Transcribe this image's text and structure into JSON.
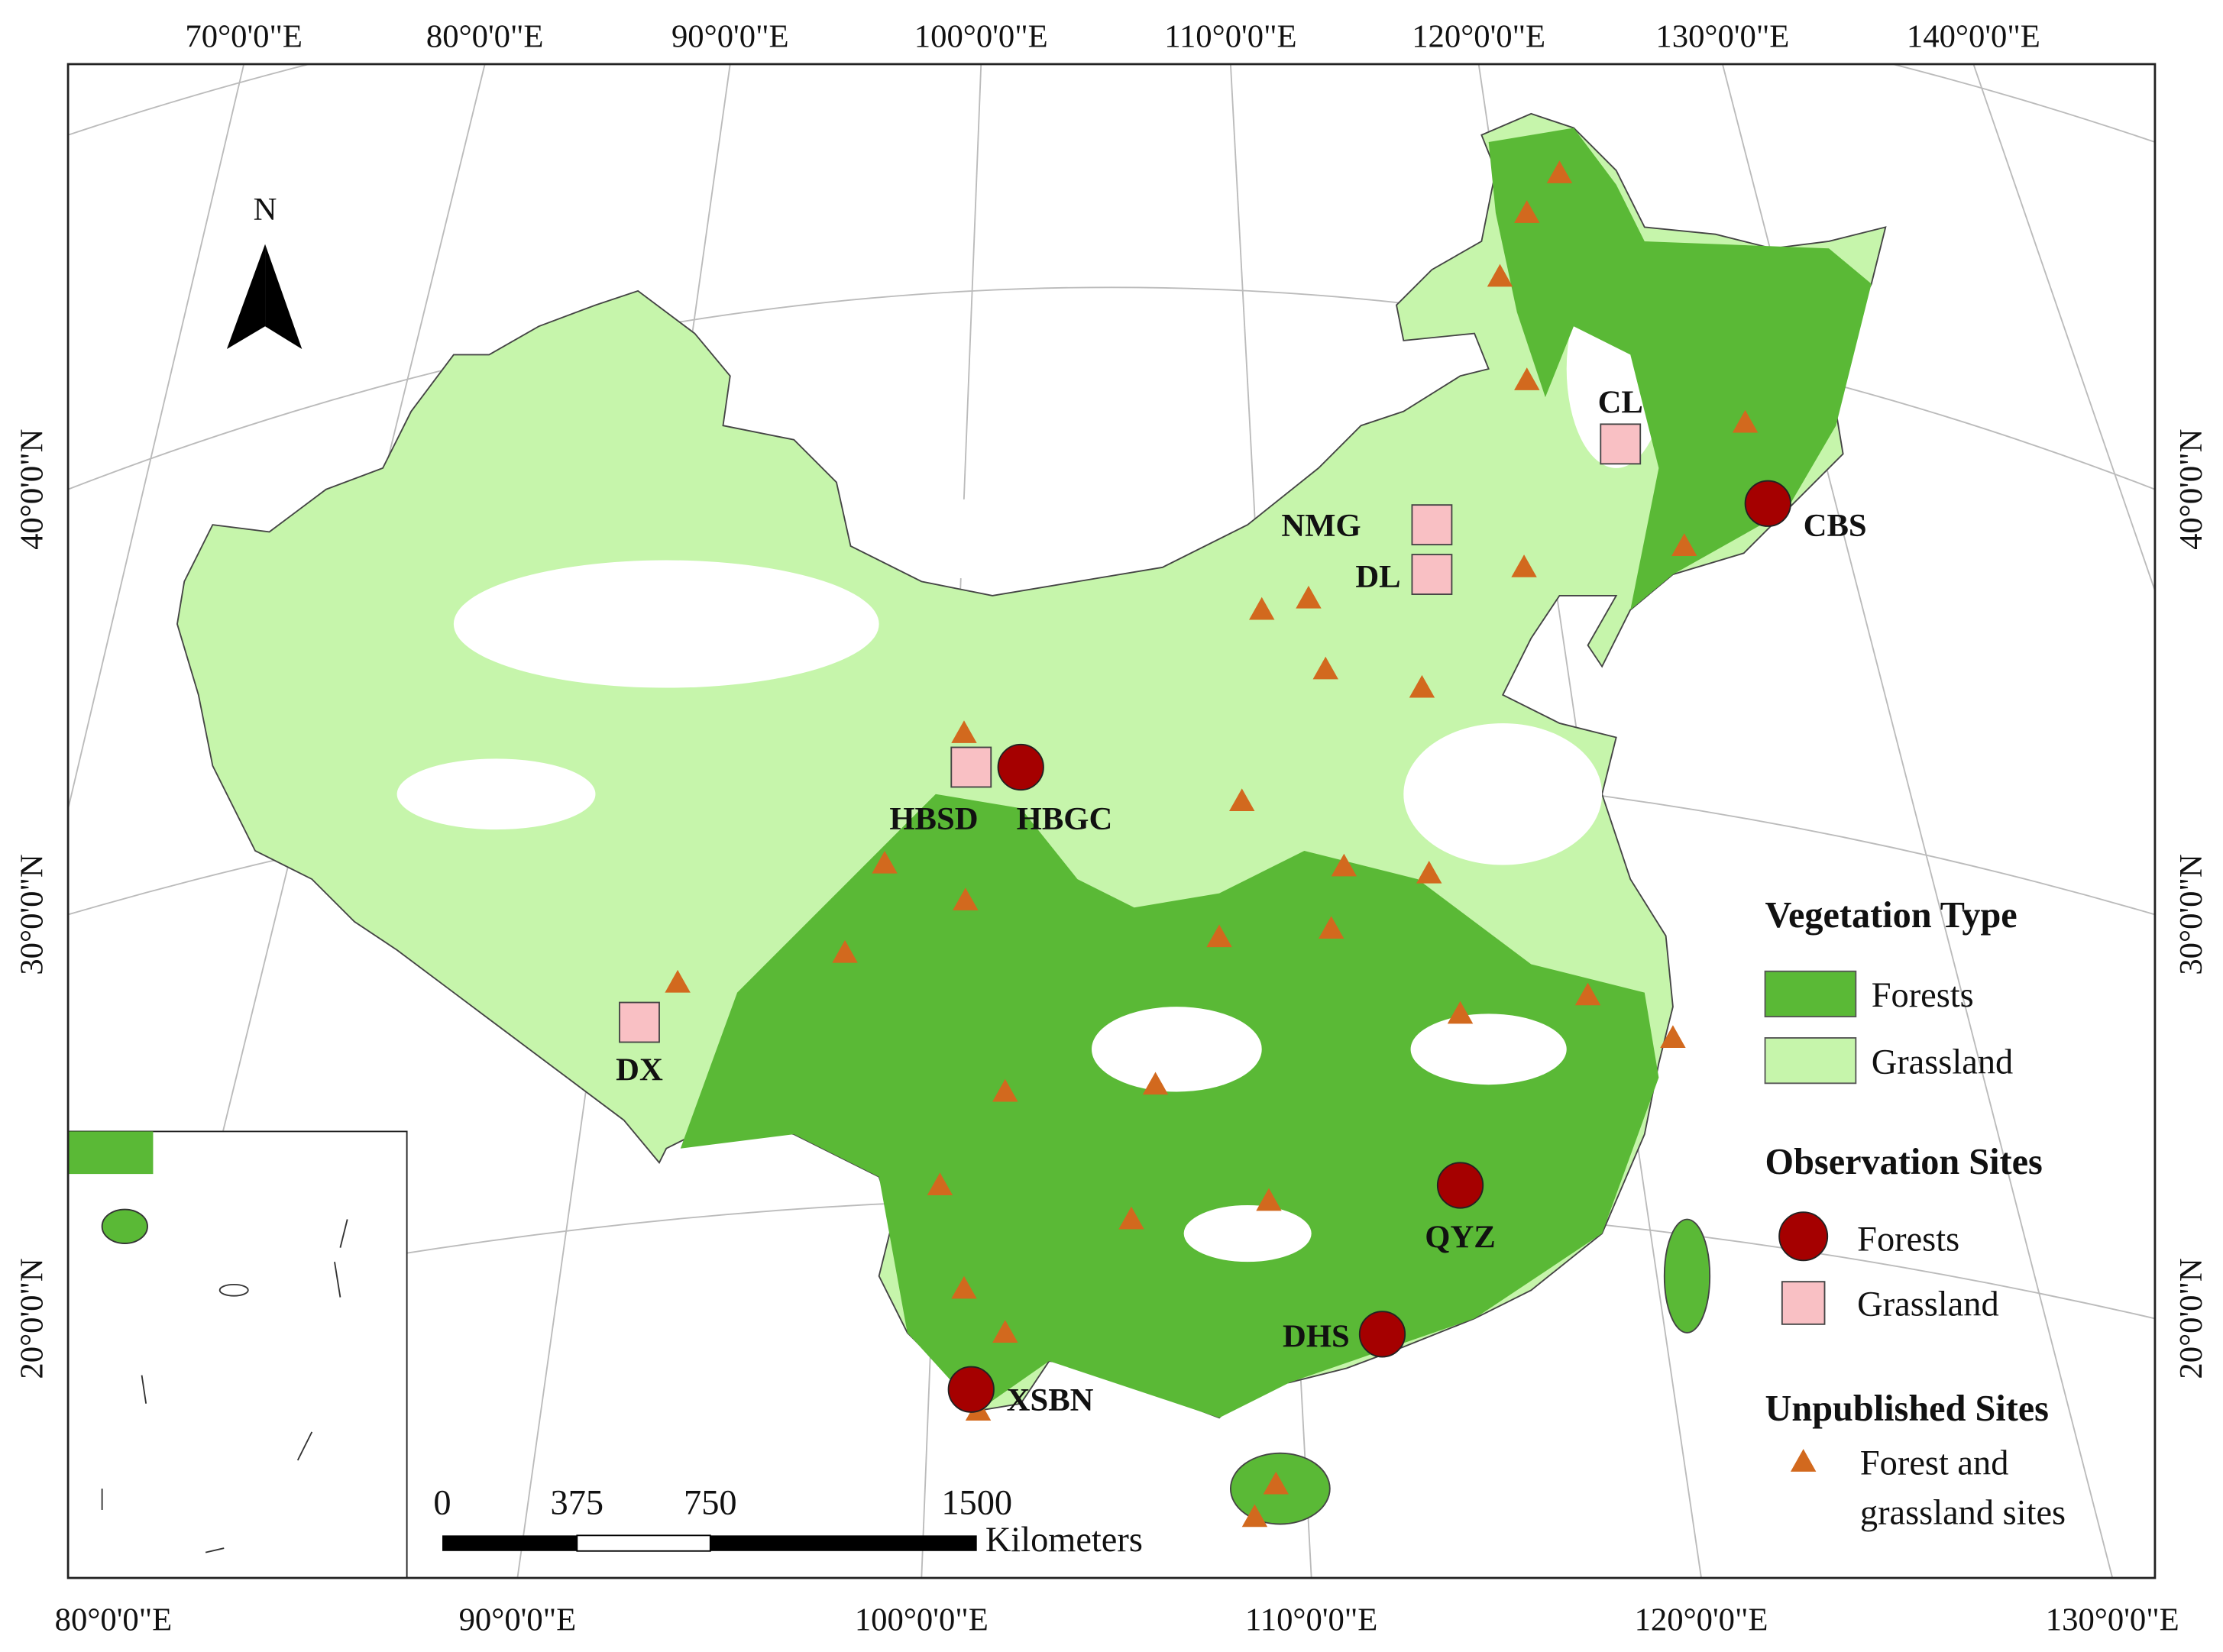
{
  "graticule": {
    "top": [
      "70°0'0\"E",
      "80°0'0\"E",
      "90°0'0\"E",
      "100°0'0\"E",
      "110°0'0\"E",
      "120°0'0\"E",
      "130°0'0\"E",
      "140°0'0\"E"
    ],
    "bottom": [
      "80°0'0\"E",
      "90°0'0\"E",
      "100°0'0\"E",
      "110°0'0\"E",
      "120°0'0\"E",
      "130°0'0\"E"
    ],
    "left": [
      "40°0'0\"N",
      "30°0'0\"N",
      "20°0'0\"N"
    ],
    "right": [
      "40°0'0\"N",
      "30°0'0\"N",
      "20°0'0\"N"
    ]
  },
  "north_arrow": "N",
  "scale_bar": {
    "labels": [
      "0",
      "375",
      "750",
      "1500"
    ],
    "unit": "Kilometers"
  },
  "sites": [
    "CL",
    "NMG",
    "DL",
    "CBS",
    "HBSD",
    "HBGC",
    "DX",
    "QYZ",
    "DHS",
    "XSBN"
  ],
  "legend": {
    "vegetation_title": "Vegetation Type",
    "vegetation": [
      "Forests",
      "Grassland"
    ],
    "observation_title": "Observation Sites",
    "observation": [
      "Forests",
      "Grassland"
    ],
    "unpublished_title": "Unpublished Sites",
    "unpublished": [
      "Forest and",
      "grassland sites"
    ]
  }
}
